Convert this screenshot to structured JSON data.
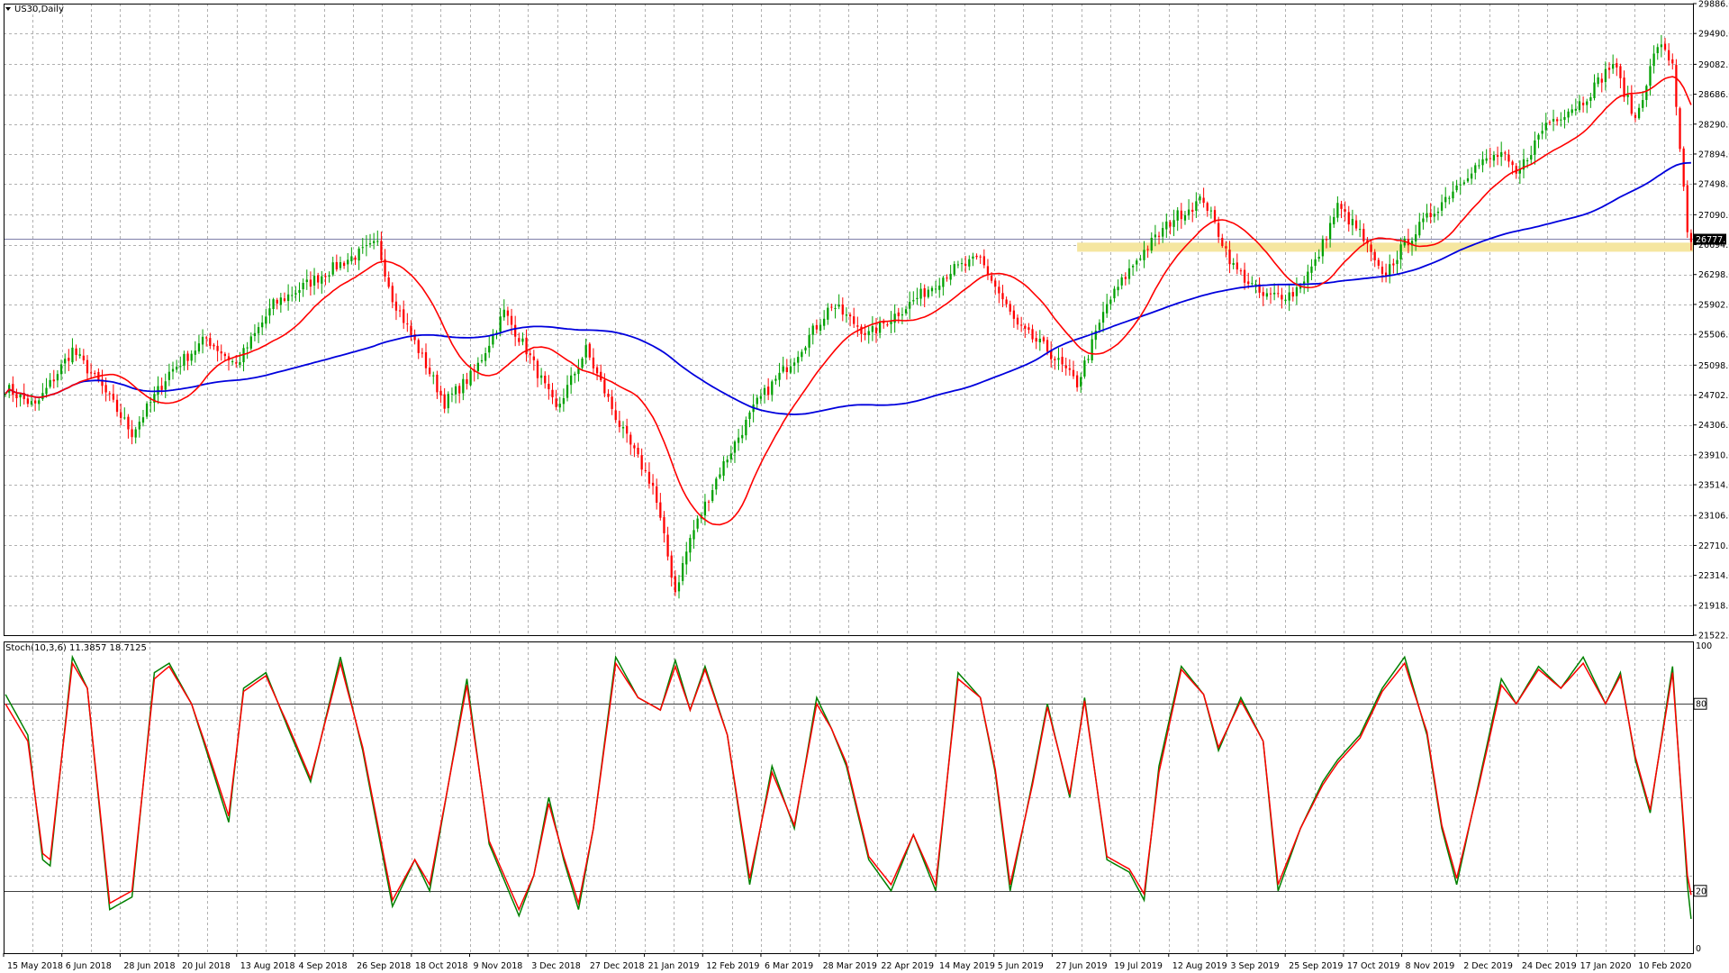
{
  "window": {
    "symbol_label": "US30,Daily",
    "indicator_label": "Stoch(10,3,6) 11.3857 18.7125"
  },
  "colors": {
    "bull": "#00a000",
    "bear": "#ff0000",
    "ma_fast": "#ff0000",
    "ma_slow": "#0000dd",
    "stoch_main": "#008000",
    "stoch_signal": "#ff0000",
    "zone": "#f5e6a0",
    "grid": "#b0b0b0"
  },
  "chart_data": [
    {
      "type": "candlestick",
      "title": "US30,Daily",
      "y_ticks": [
        "29886.0",
        "29490.0",
        "29082.0",
        "28686.0",
        "28290.0",
        "27894.0",
        "27498.0",
        "27090.0",
        "26694.0",
        "26298.0",
        "25902.0",
        "25506.0",
        "25098.0",
        "24702.0",
        "24306.0",
        "23910.0",
        "23514.0",
        "23106.0",
        "22710.0",
        "22314.0",
        "21918.0",
        "21522.0"
      ],
      "ylim": [
        21522,
        29886
      ],
      "current_price_label": "26777.7",
      "current_price": 26777.7,
      "support_zone": [
        26600,
        26720
      ],
      "x_labels": [
        "15 May 2018",
        "6 Jun 2018",
        "28 Jun 2018",
        "20 Jul 2018",
        "13 Aug 2018",
        "4 Sep 2018",
        "26 Sep 2018",
        "18 Oct 2018",
        "9 Nov 2018",
        "3 Dec 2018",
        "27 Dec 2018",
        "21 Jan 2019",
        "12 Feb 2019",
        "6 Mar 2019",
        "28 Mar 2019",
        "22 Apr 2019",
        "14 May 2019",
        "5 Jun 2019",
        "27 Jun 2019",
        "19 Jul 2019",
        "12 Aug 2019",
        "3 Sep 2019",
        "25 Sep 2019",
        "17 Oct 2019",
        "8 Nov 2019",
        "2 Dec 2019",
        "24 Dec 2019",
        "17 Jan 2020",
        "10 Feb 2020"
      ],
      "close_anchors": [
        [
          0,
          24800
        ],
        [
          8,
          24550
        ],
        [
          18,
          25300
        ],
        [
          26,
          24800
        ],
        [
          34,
          24200
        ],
        [
          44,
          25000
        ],
        [
          54,
          25450
        ],
        [
          62,
          25100
        ],
        [
          72,
          25900
        ],
        [
          82,
          26200
        ],
        [
          92,
          26500
        ],
        [
          100,
          26700
        ],
        [
          104,
          26000
        ],
        [
          112,
          25200
        ],
        [
          118,
          24600
        ],
        [
          126,
          25000
        ],
        [
          134,
          25800
        ],
        [
          140,
          25300
        ],
        [
          148,
          24500
        ],
        [
          156,
          25300
        ],
        [
          166,
          24200
        ],
        [
          174,
          23500
        ],
        [
          180,
          22100
        ],
        [
          184,
          22800
        ],
        [
          192,
          23700
        ],
        [
          202,
          24600
        ],
        [
          212,
          25200
        ],
        [
          222,
          25900
        ],
        [
          232,
          25500
        ],
        [
          244,
          25950
        ],
        [
          254,
          26350
        ],
        [
          262,
          26500
        ],
        [
          272,
          25600
        ],
        [
          280,
          25300
        ],
        [
          288,
          24850
        ],
        [
          296,
          25900
        ],
        [
          304,
          26500
        ],
        [
          314,
          27050
        ],
        [
          322,
          27300
        ],
        [
          330,
          26400
        ],
        [
          338,
          26000
        ],
        [
          346,
          26050
        ],
        [
          352,
          26450
        ],
        [
          358,
          27200
        ],
        [
          364,
          26850
        ],
        [
          370,
          26250
        ],
        [
          376,
          26700
        ],
        [
          384,
          27150
        ],
        [
          394,
          27700
        ],
        [
          402,
          27900
        ],
        [
          406,
          27600
        ],
        [
          414,
          28300
        ],
        [
          424,
          28600
        ],
        [
          432,
          29100
        ],
        [
          438,
          28350
        ],
        [
          444,
          29350
        ],
        [
          448,
          29100
        ],
        [
          450,
          28000
        ],
        [
          452,
          26800
        ],
        [
          453,
          26700
        ]
      ]
    },
    {
      "type": "line",
      "title": "Stoch(10,3,6) 11.3857 18.7125",
      "ylim": [
        0,
        100
      ],
      "y_ticks": [
        "100",
        "80",
        "20",
        "0"
      ],
      "levels": [
        80,
        20
      ],
      "stoch_main_last": 11.3857,
      "stoch_signal_last": 18.7125,
      "main_anchors": [
        [
          0,
          83
        ],
        [
          6,
          70
        ],
        [
          10,
          30
        ],
        [
          12,
          28
        ],
        [
          18,
          95
        ],
        [
          22,
          85
        ],
        [
          28,
          14
        ],
        [
          34,
          18
        ],
        [
          40,
          90
        ],
        [
          44,
          93
        ],
        [
          50,
          80
        ],
        [
          54,
          65
        ],
        [
          60,
          42
        ],
        [
          64,
          85
        ],
        [
          70,
          90
        ],
        [
          76,
          72
        ],
        [
          82,
          55
        ],
        [
          90,
          95
        ],
        [
          96,
          65
        ],
        [
          104,
          15
        ],
        [
          110,
          30
        ],
        [
          114,
          20
        ],
        [
          124,
          88
        ],
        [
          130,
          35
        ],
        [
          138,
          12
        ],
        [
          142,
          25
        ],
        [
          146,
          50
        ],
        [
          150,
          30
        ],
        [
          154,
          14
        ],
        [
          158,
          40
        ],
        [
          164,
          95
        ],
        [
          170,
          82
        ],
        [
          176,
          78
        ],
        [
          180,
          94
        ],
        [
          184,
          78
        ],
        [
          188,
          92
        ],
        [
          194,
          70
        ],
        [
          200,
          22
        ],
        [
          206,
          60
        ],
        [
          212,
          40
        ],
        [
          218,
          82
        ],
        [
          222,
          72
        ],
        [
          226,
          60
        ],
        [
          232,
          30
        ],
        [
          238,
          20
        ],
        [
          244,
          38
        ],
        [
          250,
          20
        ],
        [
          256,
          90
        ],
        [
          262,
          82
        ],
        [
          266,
          58
        ],
        [
          270,
          20
        ],
        [
          276,
          55
        ],
        [
          280,
          80
        ],
        [
          286,
          50
        ],
        [
          290,
          82
        ],
        [
          296,
          30
        ],
        [
          302,
          26
        ],
        [
          306,
          17
        ],
        [
          310,
          60
        ],
        [
          316,
          92
        ],
        [
          322,
          83
        ],
        [
          326,
          65
        ],
        [
          332,
          82
        ],
        [
          338,
          68
        ],
        [
          342,
          20
        ],
        [
          348,
          40
        ],
        [
          354,
          55
        ],
        [
          358,
          62
        ],
        [
          364,
          70
        ],
        [
          370,
          85
        ],
        [
          376,
          95
        ],
        [
          382,
          70
        ],
        [
          386,
          40
        ],
        [
          390,
          22
        ],
        [
          396,
          55
        ],
        [
          402,
          88
        ],
        [
          406,
          80
        ],
        [
          412,
          92
        ],
        [
          418,
          85
        ],
        [
          424,
          95
        ],
        [
          430,
          80
        ],
        [
          434,
          90
        ],
        [
          438,
          62
        ],
        [
          442,
          45
        ],
        [
          448,
          92
        ],
        [
          452,
          22
        ],
        [
          453,
          11
        ]
      ],
      "signal_anchors": [
        [
          0,
          80
        ],
        [
          6,
          68
        ],
        [
          10,
          32
        ],
        [
          12,
          30
        ],
        [
          18,
          93
        ],
        [
          22,
          85
        ],
        [
          28,
          16
        ],
        [
          34,
          20
        ],
        [
          40,
          88
        ],
        [
          44,
          92
        ],
        [
          50,
          80
        ],
        [
          54,
          66
        ],
        [
          60,
          44
        ],
        [
          64,
          84
        ],
        [
          70,
          89
        ],
        [
          76,
          73
        ],
        [
          82,
          56
        ],
        [
          90,
          93
        ],
        [
          96,
          66
        ],
        [
          104,
          17
        ],
        [
          110,
          30
        ],
        [
          114,
          22
        ],
        [
          124,
          86
        ],
        [
          130,
          36
        ],
        [
          138,
          14
        ],
        [
          142,
          25
        ],
        [
          146,
          48
        ],
        [
          150,
          31
        ],
        [
          154,
          16
        ],
        [
          158,
          40
        ],
        [
          164,
          93
        ],
        [
          170,
          82
        ],
        [
          176,
          78
        ],
        [
          180,
          92
        ],
        [
          184,
          78
        ],
        [
          188,
          91
        ],
        [
          194,
          70
        ],
        [
          200,
          24
        ],
        [
          206,
          58
        ],
        [
          212,
          41
        ],
        [
          218,
          80
        ],
        [
          222,
          72
        ],
        [
          226,
          61
        ],
        [
          232,
          31
        ],
        [
          238,
          22
        ],
        [
          244,
          38
        ],
        [
          250,
          22
        ],
        [
          256,
          88
        ],
        [
          262,
          82
        ],
        [
          266,
          59
        ],
        [
          270,
          22
        ],
        [
          276,
          54
        ],
        [
          280,
          79
        ],
        [
          286,
          51
        ],
        [
          290,
          81
        ],
        [
          296,
          31
        ],
        [
          302,
          27
        ],
        [
          306,
          19
        ],
        [
          310,
          58
        ],
        [
          316,
          91
        ],
        [
          322,
          83
        ],
        [
          326,
          66
        ],
        [
          332,
          81
        ],
        [
          338,
          68
        ],
        [
          342,
          22
        ],
        [
          348,
          40
        ],
        [
          354,
          54
        ],
        [
          358,
          61
        ],
        [
          364,
          69
        ],
        [
          370,
          84
        ],
        [
          376,
          93
        ],
        [
          382,
          71
        ],
        [
          386,
          41
        ],
        [
          390,
          24
        ],
        [
          396,
          54
        ],
        [
          402,
          86
        ],
        [
          406,
          80
        ],
        [
          412,
          91
        ],
        [
          418,
          85
        ],
        [
          424,
          93
        ],
        [
          430,
          80
        ],
        [
          434,
          89
        ],
        [
          438,
          63
        ],
        [
          442,
          46
        ],
        [
          448,
          90
        ],
        [
          452,
          25
        ],
        [
          453,
          18.7
        ]
      ]
    }
  ]
}
